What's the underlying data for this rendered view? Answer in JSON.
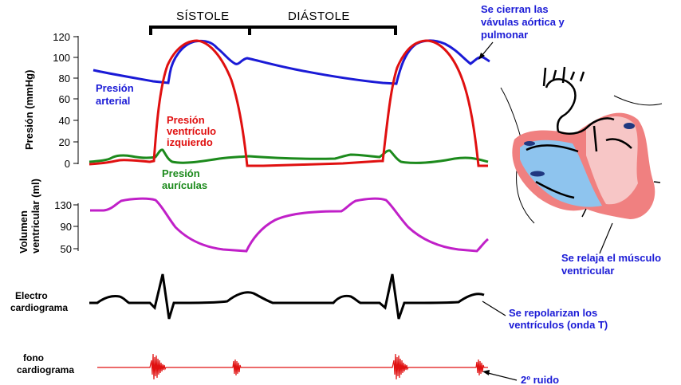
{
  "phases": {
    "systole": "SÍSTOLE",
    "diastole": "DIÁSTOLE"
  },
  "pressure": {
    "axis_title": "Presión (mmHg)",
    "ticks": [
      "120",
      "100",
      "80",
      "60",
      "40",
      "20",
      "0"
    ],
    "arterial_label": [
      "Presión",
      "arterial"
    ],
    "ventricle_label": [
      "Presión",
      "ventrículo",
      "izquierdo"
    ],
    "atria_label": [
      "Presión",
      "aurículas"
    ]
  },
  "volume": {
    "axis_title": [
      "Volumen",
      "ventricular (ml)"
    ],
    "ticks": [
      "130",
      "90",
      "50"
    ]
  },
  "ecg": {
    "label": [
      "Electro",
      "cardiograma"
    ]
  },
  "phono": {
    "label": [
      "fono",
      "cardiograma"
    ]
  },
  "annotations": {
    "valves_close": [
      "Se cierran las",
      "vávulas aórtica y",
      "pulmonar"
    ],
    "muscle_relaxes": [
      "Se relaja el músculo",
      "ventricular"
    ],
    "repolarize": [
      "Se repolarizan los",
      "ventrículos (onda T)"
    ],
    "second_sound": "2º ruido"
  },
  "colors": {
    "arterial": "#1a1ad6",
    "ventricle": "#e01010",
    "atria": "#1c8a1c",
    "volume": "#c020c8",
    "ecg": "#000000",
    "phono": "#e01010",
    "heart_outer": "#f08080",
    "heart_inner": "#f7c6c6",
    "heart_blue": "#8ec4ee"
  }
}
